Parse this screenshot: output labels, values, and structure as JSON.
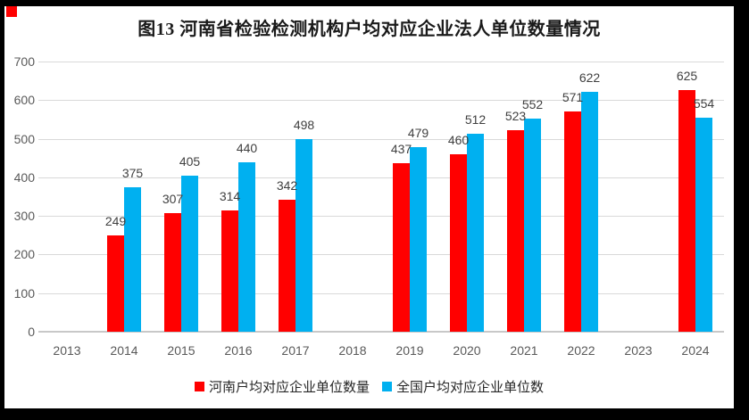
{
  "corner_marker": {
    "color": "#ff0000"
  },
  "chart_data": {
    "type": "bar",
    "title": "图13  河南省检验检测机构户均对应企业法人单位数量情况",
    "categories": [
      "2013",
      "2014",
      "2015",
      "2016",
      "2017",
      "2018",
      "2019",
      "2020",
      "2021",
      "2022",
      "2023",
      "2024"
    ],
    "yticks": [
      0,
      100,
      200,
      300,
      400,
      500,
      600,
      700
    ],
    "ylim": [
      0,
      700
    ],
    "grid": true,
    "value_labels": true,
    "legend_position": "bottom",
    "series": [
      {
        "name": "河南户均对应企业单位数量",
        "color": "#ff0000",
        "values": [
          null,
          249,
          307,
          314,
          342,
          null,
          437,
          460,
          523,
          571,
          null,
          625
        ]
      },
      {
        "name": "全国户均对应企业单位数",
        "color": "#00b0f0",
        "values": [
          null,
          375,
          405,
          440,
          498,
          null,
          479,
          512,
          552,
          622,
          null,
          554
        ]
      }
    ]
  }
}
